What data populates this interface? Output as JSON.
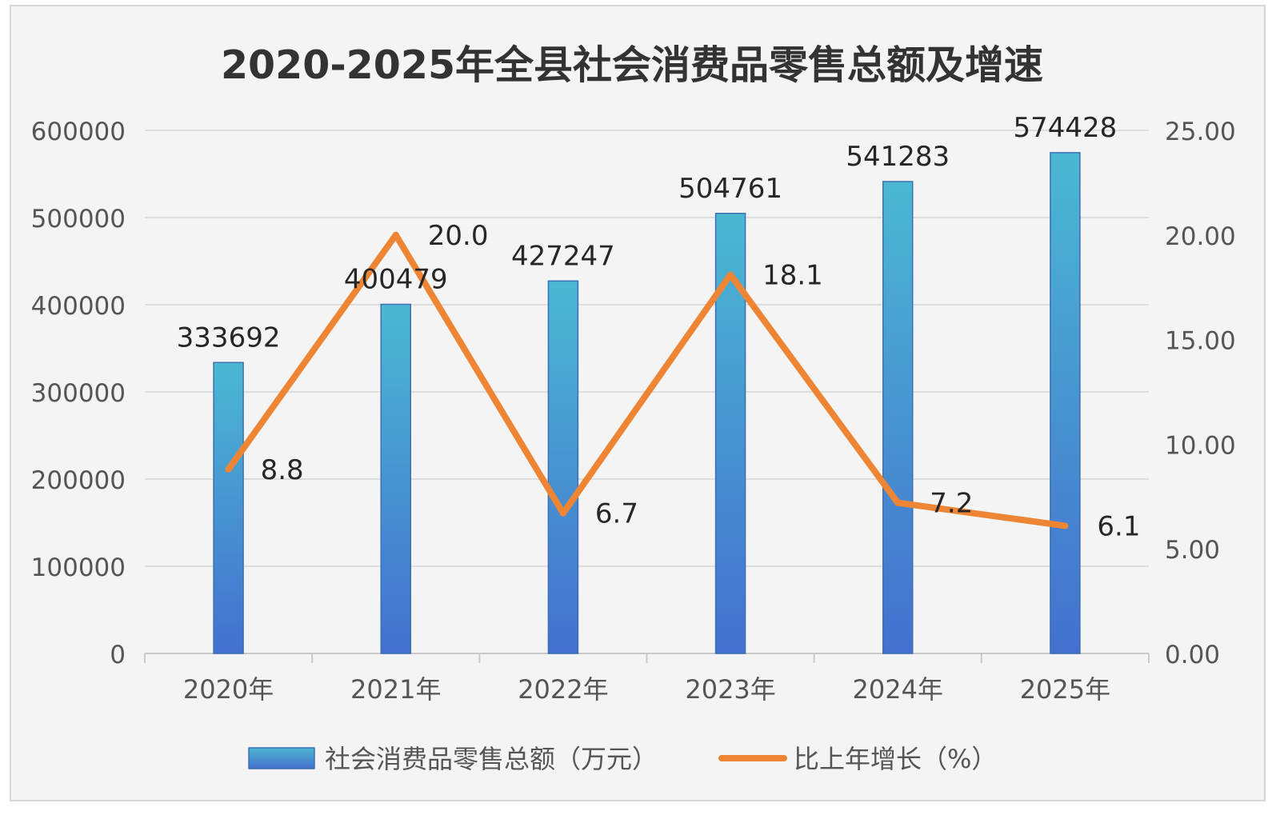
{
  "chart_data": {
    "type": "bar",
    "title": "2020-2025年全县社会消费品零售总额及增速",
    "categories": [
      "2020年",
      "2021年",
      "2022年",
      "2023年",
      "2024年",
      "2025年"
    ],
    "series": [
      {
        "name": "社会消费品零售总额（万元）",
        "type": "bar",
        "axis": "left",
        "values": [
          333692,
          400479,
          427247,
          504761,
          541283,
          574428
        ],
        "labels": [
          "333692",
          "400479",
          "427247",
          "504761",
          "541283",
          "574428"
        ]
      },
      {
        "name": "比上年增长（%）",
        "type": "line",
        "axis": "right",
        "values": [
          8.8,
          20.0,
          6.7,
          18.1,
          7.2,
          6.1
        ],
        "labels": [
          "8.8",
          "20.0",
          "6.7",
          "18.1",
          "7.2",
          "6.1"
        ]
      }
    ],
    "y_left": {
      "ylim": [
        0,
        600000
      ],
      "ticks": [
        "0",
        "100000",
        "200000",
        "300000",
        "400000",
        "500000",
        "600000"
      ]
    },
    "y_right": {
      "ylim": [
        0,
        25
      ],
      "ticks": [
        "0.00",
        "5.00",
        "10.00",
        "15.00",
        "20.00",
        "25.00"
      ]
    },
    "grid": true,
    "legend_position": "bottom",
    "colors": {
      "bar_top": "#4bb8d2",
      "bar_bottom": "#4470cf",
      "line": "#ed8534",
      "grid": "#dddddd",
      "background": "#f4f4f4"
    }
  }
}
